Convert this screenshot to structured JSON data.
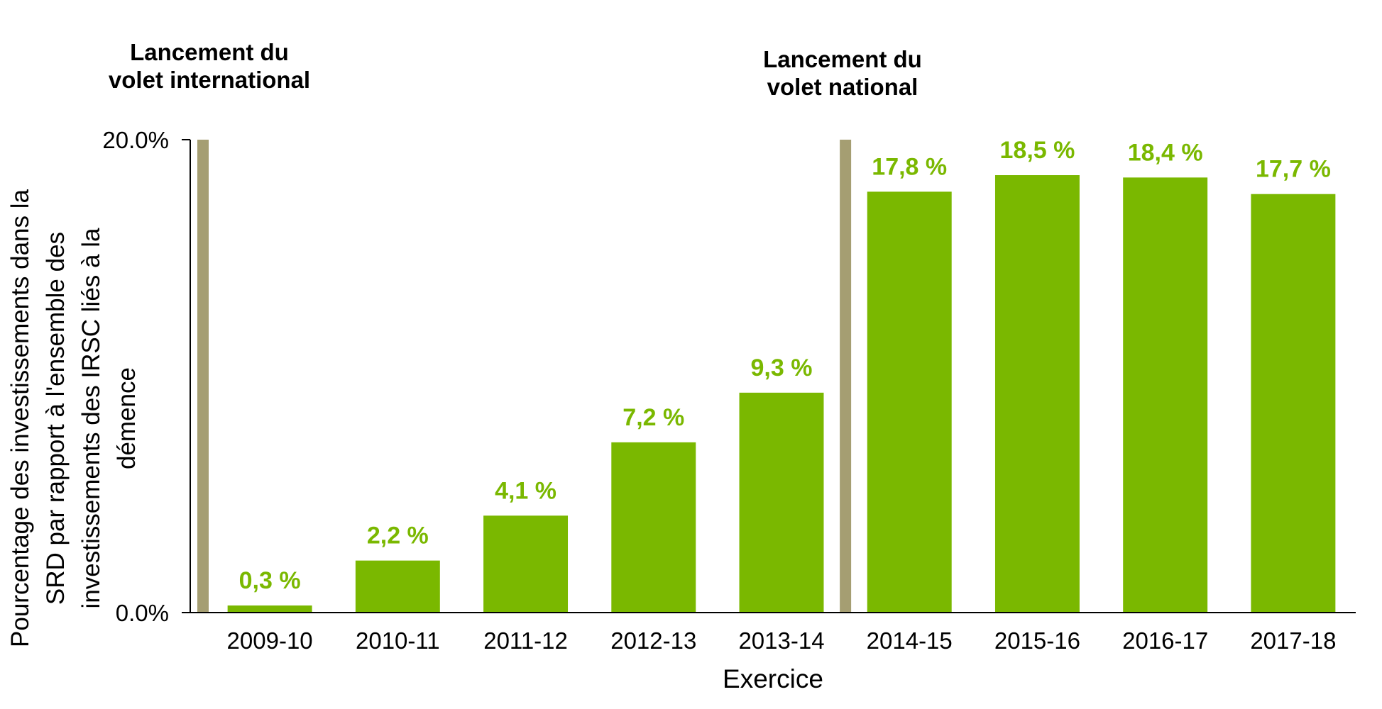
{
  "chart_data": {
    "type": "bar",
    "categories": [
      "2009-10",
      "2010-11",
      "2011-12",
      "2012-13",
      "2013-14",
      "2014-15",
      "2015-16",
      "2016-17",
      "2017-18"
    ],
    "values": [
      0.3,
      2.2,
      4.1,
      7.2,
      9.3,
      17.8,
      18.5,
      18.4,
      17.7
    ],
    "value_labels": [
      "0,3 %",
      "2,2 %",
      "4,1 %",
      "7,2 %",
      "9,3 %",
      "17,8 %",
      "18,5 %",
      "18,4 %",
      "17,7 %"
    ],
    "xlabel": "Exercice",
    "ylabel_lines": [
      "Pourcentage des investissements dans la",
      "SRD par rapport à l'ensemble des",
      "investissements des IRSC liés à la",
      "démence"
    ],
    "ylim": [
      0,
      20
    ],
    "ytick_labels": [
      "0.0%",
      "20.0%"
    ],
    "grid": false,
    "legend": "none",
    "bar_color": "#7ab800",
    "label_color": "#7ab800",
    "marker_color": "#a59e72",
    "annotations": [
      {
        "lines": [
          "Lancement du",
          "volet international"
        ],
        "before_category": "2009-10"
      },
      {
        "lines": [
          "Lancement du",
          "volet national"
        ],
        "before_category": "2014-15"
      }
    ]
  }
}
